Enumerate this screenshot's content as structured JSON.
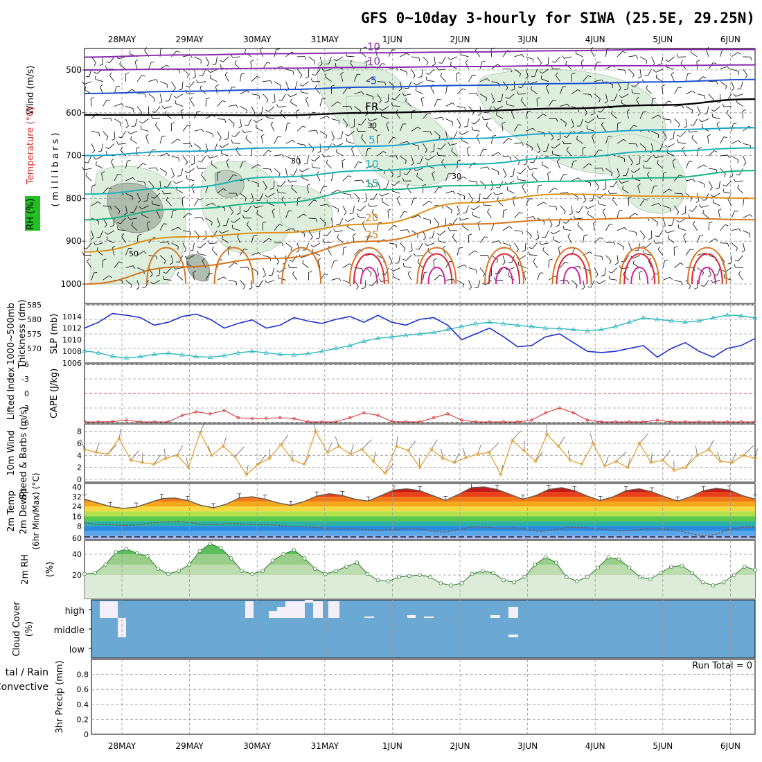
{
  "title": "GFS 0~10day 3-hourly for SIWA (25.5E, 29.25N)",
  "dates": [
    "28MAY",
    "29MAY",
    "30MAY",
    "31MAY",
    "1JUN",
    "2JUN",
    "3JUN",
    "4JUN",
    "5JUN",
    "6JUN"
  ],
  "colors": {
    "thickness": "#2ab6c0",
    "slp": "#1a2fcf",
    "lifted": "#d62a2a",
    "wind": "#e09a2a",
    "rh": "#2a9a2a",
    "cloud": "#6ba9d4",
    "cloud_gap": "#f4f0fa"
  },
  "chart_data": [
    {
      "id": "upper-air",
      "type": "contour",
      "ylabel_parts": [
        "Wind (m/s)",
        "Temperature (°C)",
        "RH (%)"
      ],
      "ylabel_sub": "( m i l l i b a r s )",
      "y_ticks": [
        500,
        600,
        700,
        800,
        900,
        1000
      ],
      "temperature_contours": [
        {
          "label": "-10",
          "pressure": [
            470,
            465,
            462,
            460,
            458,
            455,
            452,
            452
          ]
        },
        {
          "label": "-10",
          "pressure": [
            500,
            498,
            496,
            494,
            492,
            490,
            490,
            488
          ]
        },
        {
          "label": "-5",
          "pressure": [
            555,
            550,
            546,
            540,
            536,
            532,
            528,
            522
          ]
        },
        {
          "label": "FR",
          "pressure": [
            605,
            605,
            606,
            600,
            596,
            590,
            582,
            568
          ]
        },
        {
          "label": "5",
          "pressure": [
            700,
            690,
            682,
            678,
            660,
            648,
            640,
            635
          ]
        },
        {
          "label": "10",
          "pressure": [
            790,
            775,
            750,
            735,
            720,
            705,
            690,
            682
          ]
        },
        {
          "label": "15",
          "pressure": [
            850,
            825,
            810,
            780,
            770,
            760,
            752,
            735
          ]
        },
        {
          "label": "20",
          "pressure": [
            925,
            890,
            880,
            860,
            810,
            790,
            795,
            800
          ]
        },
        {
          "label": "25",
          "pressure": [
            1000,
            960,
            940,
            900,
            860,
            850,
            845,
            850
          ]
        }
      ],
      "rh_labels": [
        "50",
        "30",
        "30",
        "30"
      ]
    },
    {
      "id": "thickness-slp",
      "type": "line",
      "left_axis": {
        "label": "Thickness (dm)",
        "label2": "1000~500mb",
        "ticks": [
          570,
          575,
          580,
          585
        ],
        "ylim": [
          565,
          585
        ]
      },
      "right_axis": {
        "label": "SLP (mb)",
        "ticks": [
          1006,
          1008,
          1010,
          1012,
          1014
        ],
        "ylim": [
          1006,
          1016
        ]
      },
      "thickness": [
        569.2,
        568.5,
        567.3,
        566.7,
        567.2,
        568.0,
        568.3,
        567.8,
        567.2,
        567.0,
        567.5,
        568.5,
        569.0,
        568.5,
        568.0,
        567.8,
        568.2,
        569.0,
        570.0,
        571.0,
        572.5,
        573.5,
        574.0,
        574.5,
        575.0,
        575.5,
        576.5,
        577.5,
        578.5,
        579.0,
        578.5,
        578.0,
        577.5,
        577.0,
        576.8,
        576.5,
        576.0,
        576.5,
        577.5,
        579.0,
        580.5,
        580.0,
        579.5,
        579.0,
        579.5,
        580.5,
        581.5,
        581.2,
        580.5
      ],
      "slp": [
        1012.0,
        1013.0,
        1014.5,
        1014.2,
        1013.8,
        1012.5,
        1013.0,
        1014.0,
        1014.4,
        1013.5,
        1012.0,
        1012.8,
        1013.4,
        1012.0,
        1012.5,
        1013.8,
        1013.2,
        1012.8,
        1013.5,
        1014.0,
        1013.0,
        1014.2,
        1013.0,
        1012.5,
        1013.5,
        1013.8,
        1012.5,
        1010.0,
        1011.0,
        1012.0,
        1010.5,
        1008.8,
        1009.0,
        1010.5,
        1011.0,
        1009.5,
        1008.0,
        1007.8,
        1008.0,
        1008.5,
        1009.0,
        1007.0,
        1008.5,
        1009.5,
        1008.0,
        1007.0,
        1008.5,
        1009.0,
        1010.2
      ]
    },
    {
      "id": "lifted-cape",
      "type": "line",
      "ylabel": "Lifted Index",
      "ylabel2": "CAPE (J/kg)",
      "ticks": [
        -6,
        -3,
        0,
        3,
        6
      ],
      "ylim": [
        6,
        -6
      ],
      "lifted": [
        7.0,
        6.5,
        5.8,
        5.5,
        6.0,
        7.0,
        6.2,
        4.5,
        3.8,
        4.2,
        3.5,
        5.0,
        5.2,
        5.1,
        5.0,
        5.2,
        6.0,
        7.0,
        6.5,
        5.0,
        4.0,
        4.5,
        5.8,
        6.5,
        6.0,
        5.0,
        4.2,
        5.5,
        6.8,
        7.0,
        6.5,
        6.0,
        5.5,
        4.0,
        3.0,
        4.0,
        5.5,
        6.5,
        7.0,
        6.8,
        6.5,
        5.5,
        6.2,
        7.0,
        7.0,
        6.5,
        6.8,
        7.0,
        7.0
      ]
    },
    {
      "id": "wind10m",
      "type": "line",
      "ylabel": "10m Wind",
      "ylabel2": "Speed & Barbs (m/s)",
      "ticks": [
        0,
        2,
        4,
        6,
        8
      ],
      "ylim": [
        0,
        9
      ],
      "values": [
        5.0,
        4.5,
        4.2,
        6.8,
        3.2,
        2.8,
        2.5,
        3.5,
        4.0,
        2.0,
        7.8,
        4.0,
        5.5,
        3.8,
        0.8,
        2.5,
        3.5,
        5.8,
        3.2,
        2.5,
        8.0,
        4.5,
        5.5,
        4.2,
        5.0,
        3.0,
        1.0,
        5.5,
        4.8,
        2.0,
        5.0,
        3.5,
        2.8,
        3.6,
        4.2,
        4.5,
        0.8,
        6.5,
        4.8,
        3.0,
        7.5,
        5.5,
        3.2,
        2.5,
        6.0,
        2.2,
        3.0,
        2.0,
        6.0,
        2.8,
        3.2,
        1.5,
        2.0,
        4.0,
        5.0,
        3.0,
        2.8,
        4.0,
        3.5
      ]
    },
    {
      "id": "temp2m",
      "type": "area",
      "ylabel": "2m Temp",
      "ylabel2": "2m DewPt",
      "ylabel3": "(6hr Min/Max) (°C)",
      "ticks": [
        40,
        32,
        24,
        16,
        8,
        60
      ],
      "temp": [
        30.0,
        27.0,
        24.0,
        22.5,
        23.5,
        27.0,
        30.5,
        31.0,
        29.0,
        25.0,
        23.0,
        26.0,
        31.0,
        32.0,
        30.0,
        27.0,
        25.0,
        28.0,
        32.5,
        34.5,
        33.0,
        30.0,
        28.5,
        33.0,
        37.5,
        38.5,
        37.0,
        33.0,
        29.0,
        34.0,
        39.5,
        40.0,
        38.0,
        34.0,
        30.0,
        33.0,
        38.0,
        39.5,
        37.0,
        32.5,
        29.0,
        32.0,
        37.0,
        38.5,
        36.0,
        32.0,
        28.5,
        32.0,
        37.0,
        39.0,
        37.5,
        33.0,
        30.0
      ],
      "dewpt": [
        10.5,
        9.5,
        9.0,
        8.5,
        9.0,
        10.5,
        11.5,
        11.8,
        10.5,
        9.0,
        9.5,
        10.0,
        9.5,
        9.0,
        9.0,
        8.0,
        7.5,
        7.0,
        6.0,
        5.5,
        6.0,
        5.0,
        4.5,
        5.0,
        6.0,
        5.5,
        3.5,
        3.0,
        5.5,
        7.5,
        7.0,
        6.0,
        6.5,
        5.0,
        3.5,
        5.0,
        7.0,
        6.8,
        6.0,
        5.0,
        4.0,
        4.5,
        6.0,
        5.5,
        4.5,
        2.5,
        0.0,
        1.0,
        5.0,
        7.0,
        7.0
      ]
    },
    {
      "id": "rh2m",
      "type": "area",
      "ylabel": "2m RH",
      "ylabel2": "(%)",
      "ticks": [
        20,
        40
      ],
      "ylim": [
        0,
        52
      ],
      "values": [
        21,
        22,
        30,
        42,
        45,
        41,
        38,
        26,
        21,
        24,
        30,
        43,
        50,
        46,
        36,
        24,
        21,
        24,
        34,
        40,
        44,
        36,
        26,
        21,
        24,
        28,
        32,
        21,
        15,
        14,
        18,
        19,
        20,
        18,
        12,
        10,
        12,
        21,
        24,
        22,
        15,
        13,
        18,
        30,
        37,
        32,
        18,
        14,
        18,
        27,
        37,
        35,
        27,
        18,
        16,
        22,
        28,
        29,
        22,
        13,
        10,
        13,
        20,
        28,
        25
      ]
    },
    {
      "id": "cloud-cover",
      "type": "heatmap",
      "ylabel": "Cloud Cover",
      "ylabel2": "(%)",
      "rows": [
        "high",
        "middle",
        "low"
      ]
    },
    {
      "id": "precip",
      "type": "bar",
      "ylabel": "3hr Precip (mm)",
      "ylabel_total": "tal / Rain",
      "ylabel_conv": "Convective",
      "ticks": [
        0,
        0.2,
        0.4,
        0.6,
        0.8
      ],
      "ylim": [
        0,
        1
      ],
      "run_total": "Run Total = 0",
      "values": []
    }
  ]
}
